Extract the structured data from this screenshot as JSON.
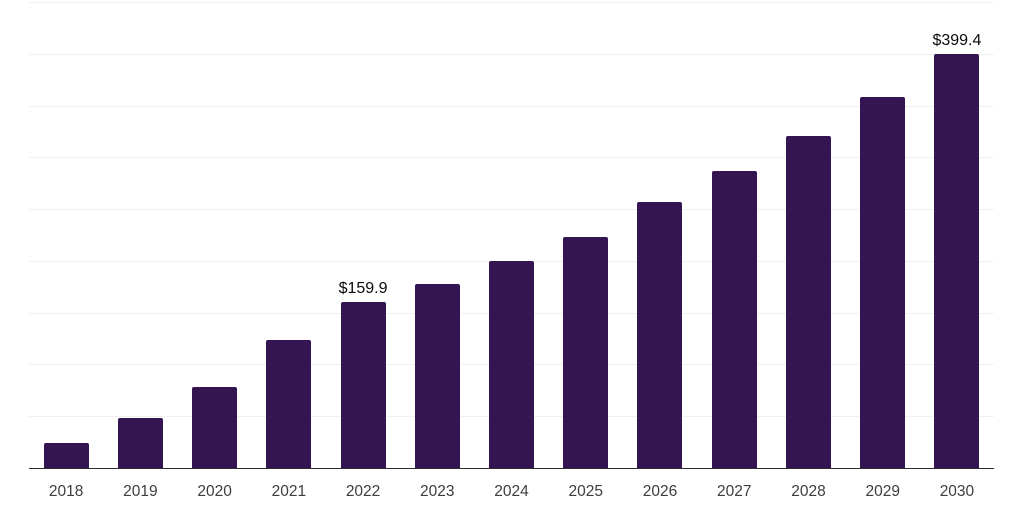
{
  "page": {
    "background_color": "#ffffff"
  },
  "chart_data": {
    "type": "bar",
    "title": "",
    "xlabel": "",
    "ylabel": "",
    "categories": [
      "2018",
      "2019",
      "2020",
      "2021",
      "2022",
      "2023",
      "2024",
      "2025",
      "2026",
      "2027",
      "2028",
      "2029",
      "2030"
    ],
    "values": [
      24.3,
      48.7,
      78.2,
      123.5,
      159.9,
      177.5,
      200.0,
      222.8,
      256.5,
      286.7,
      320.4,
      358.3,
      399.4
    ],
    "value_labels": {
      "2022": "$159.9",
      "2030": "$399.4"
    },
    "ylim": [
      0,
      450
    ],
    "grid": {
      "visible": true,
      "step": 50,
      "color": "#f0f0f1"
    },
    "legend": "none",
    "y_axis_tick_labels": "none",
    "bar_color": "#351452",
    "axis_line_color": "#2e2e2e",
    "tick_label_color": "#3d3d3d",
    "value_label_color": "#0a0a0a"
  }
}
